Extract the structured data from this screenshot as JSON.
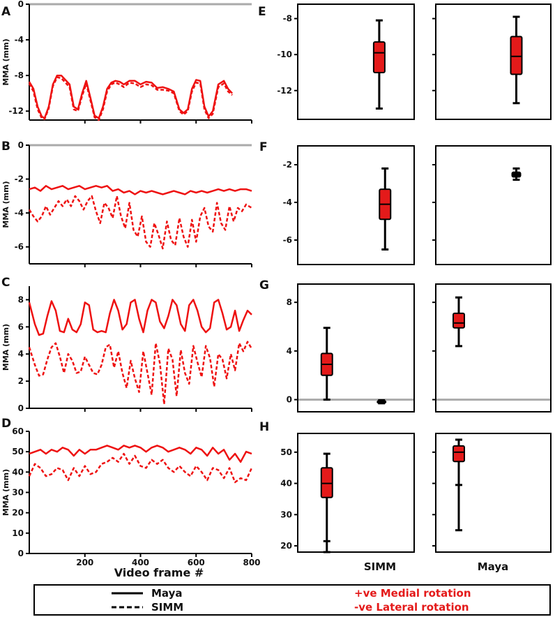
{
  "figure": {
    "colors": {
      "series": "#ee1111",
      "axis": "#000000",
      "zero_line": "#aaaaaa",
      "box_fill": "#e41a1a"
    },
    "legend": {
      "maya_label": "Maya",
      "simm_label": "SIMM",
      "medial_text": "+ve Medial rotation",
      "lateral_text": "-ve Lateral rotation"
    }
  },
  "chart_data": [
    {
      "panel": "A",
      "type": "line",
      "ylabel": "MMA (mm)",
      "ylim": [
        -13,
        0
      ],
      "yticks": [
        0,
        -4,
        -8,
        -12
      ],
      "xlim": [
        0,
        800
      ],
      "zero_line": true,
      "series": [
        {
          "name": "Maya",
          "style": "solid",
          "x": [
            0,
            15,
            30,
            45,
            55,
            70,
            85,
            100,
            115,
            130,
            145,
            160,
            175,
            190,
            205,
            220,
            235,
            250,
            265,
            280,
            295,
            310,
            325,
            340,
            360,
            380,
            400,
            420,
            440,
            460,
            480,
            500,
            520,
            540,
            555,
            570,
            585,
            600,
            615,
            630,
            645,
            660,
            680,
            700,
            715,
            730
          ],
          "y": [
            -8.7,
            -9.5,
            -11.5,
            -12.6,
            -12.8,
            -11.5,
            -9,
            -8,
            -8,
            -8.5,
            -9,
            -11.5,
            -11.8,
            -10,
            -8.6,
            -10.5,
            -12.5,
            -12.8,
            -11.5,
            -9.5,
            -8.8,
            -8.6,
            -8.7,
            -9,
            -8.6,
            -8.6,
            -9,
            -8.7,
            -8.8,
            -9.4,
            -9.3,
            -9.5,
            -9.8,
            -11.8,
            -12.2,
            -11.8,
            -9.5,
            -8.5,
            -8.6,
            -11.5,
            -12.6,
            -12,
            -9,
            -8.6,
            -9.5,
            -10
          ]
        },
        {
          "name": "SIMM",
          "style": "dashed",
          "x": [
            0,
            15,
            30,
            45,
            55,
            70,
            85,
            100,
            115,
            130,
            145,
            160,
            175,
            190,
            205,
            220,
            235,
            250,
            265,
            280,
            295,
            310,
            325,
            340,
            360,
            380,
            400,
            420,
            440,
            460,
            480,
            500,
            520,
            540,
            555,
            570,
            585,
            600,
            615,
            630,
            645,
            660,
            680,
            700,
            715,
            730
          ],
          "y": [
            -8.9,
            -9.8,
            -11.8,
            -12.8,
            -12.9,
            -11.7,
            -9.2,
            -8.2,
            -8.3,
            -8.8,
            -9.3,
            -11.8,
            -12,
            -10.3,
            -8.9,
            -10.8,
            -12.7,
            -13,
            -11.8,
            -9.8,
            -9,
            -8.8,
            -9,
            -9.3,
            -8.8,
            -8.9,
            -9.3,
            -9,
            -9.1,
            -9.6,
            -9.6,
            -9.7,
            -10,
            -12,
            -12.4,
            -12,
            -9.8,
            -8.8,
            -8.9,
            -11.8,
            -12.8,
            -12.3,
            -9.3,
            -8.9,
            -9.8,
            -10.2
          ]
        }
      ]
    },
    {
      "panel": "B",
      "type": "line",
      "ylabel": "MMA (mm)",
      "ylim": [
        -7,
        0
      ],
      "yticks": [
        0,
        -2,
        -4,
        -6
      ],
      "xlim": [
        0,
        800
      ],
      "zero_line": true,
      "series": [
        {
          "name": "Maya",
          "style": "solid",
          "x": [
            0,
            20,
            40,
            60,
            80,
            100,
            120,
            140,
            160,
            180,
            200,
            220,
            240,
            260,
            280,
            300,
            320,
            340,
            360,
            380,
            400,
            420,
            440,
            460,
            480,
            500,
            520,
            540,
            560,
            580,
            600,
            620,
            640,
            660,
            680,
            700,
            720,
            740,
            760,
            780,
            800
          ],
          "y": [
            -2.6,
            -2.5,
            -2.7,
            -2.4,
            -2.6,
            -2.5,
            -2.4,
            -2.6,
            -2.5,
            -2.4,
            -2.6,
            -2.5,
            -2.4,
            -2.5,
            -2.4,
            -2.7,
            -2.6,
            -2.8,
            -2.7,
            -2.9,
            -2.7,
            -2.8,
            -2.7,
            -2.8,
            -2.9,
            -2.8,
            -2.7,
            -2.8,
            -2.9,
            -2.7,
            -2.8,
            -2.7,
            -2.8,
            -2.7,
            -2.6,
            -2.7,
            -2.6,
            -2.7,
            -2.6,
            -2.6,
            -2.7
          ]
        },
        {
          "name": "SIMM",
          "style": "dashed",
          "x": [
            0,
            15,
            30,
            45,
            60,
            75,
            90,
            105,
            120,
            135,
            150,
            165,
            180,
            195,
            210,
            225,
            240,
            255,
            270,
            285,
            300,
            315,
            330,
            345,
            360,
            375,
            390,
            405,
            420,
            435,
            450,
            465,
            480,
            495,
            510,
            525,
            540,
            555,
            570,
            585,
            600,
            615,
            630,
            645,
            660,
            675,
            690,
            705,
            720,
            735,
            750,
            765,
            780,
            800
          ],
          "y": [
            -3.8,
            -4.2,
            -4.5,
            -4.2,
            -3.6,
            -4.1,
            -3.7,
            -3.3,
            -3.6,
            -3.2,
            -3.6,
            -3.0,
            -3.3,
            -3.8,
            -3.3,
            -3.0,
            -3.9,
            -4.6,
            -3.4,
            -3.7,
            -4.3,
            -3.0,
            -4.2,
            -4.9,
            -3.4,
            -5.0,
            -5.4,
            -4.2,
            -5.7,
            -6.0,
            -4.6,
            -5.3,
            -6.1,
            -4.5,
            -5.6,
            -5.9,
            -4.3,
            -5.4,
            -6.0,
            -4.4,
            -5.7,
            -4.2,
            -3.7,
            -4.8,
            -5.1,
            -3.4,
            -4.6,
            -5.0,
            -3.6,
            -4.5,
            -3.7,
            -3.9,
            -3.5,
            -3.7
          ]
        }
      ]
    },
    {
      "panel": "C",
      "type": "line",
      "ylabel": "MMA (mm)",
      "ylim": [
        0,
        9
      ],
      "yticks": [
        0,
        2,
        4,
        6,
        8
      ],
      "xlim": [
        0,
        800
      ],
      "zero_line": false,
      "series": [
        {
          "name": "Maya",
          "style": "solid",
          "x": [
            0,
            20,
            35,
            50,
            65,
            80,
            95,
            110,
            125,
            140,
            155,
            170,
            185,
            200,
            215,
            230,
            245,
            260,
            275,
            290,
            305,
            320,
            335,
            350,
            365,
            380,
            395,
            410,
            425,
            440,
            455,
            470,
            485,
            500,
            515,
            530,
            545,
            560,
            575,
            590,
            605,
            620,
            635,
            650,
            665,
            680,
            695,
            710,
            725,
            740,
            755,
            770,
            785,
            800
          ],
          "y": [
            7.8,
            6.2,
            5.4,
            5.5,
            6.8,
            7.9,
            7.2,
            5.7,
            5.6,
            6.6,
            5.8,
            5.6,
            6.2,
            7.8,
            7.6,
            5.8,
            5.6,
            5.7,
            5.6,
            7.0,
            8.0,
            7.2,
            5.8,
            6.2,
            7.8,
            8.0,
            6.6,
            5.6,
            7.2,
            8.0,
            7.8,
            6.4,
            5.9,
            6.8,
            8.0,
            7.6,
            6.2,
            5.7,
            7.6,
            8.0,
            7.2,
            6.0,
            5.6,
            5.9,
            7.8,
            8.0,
            7.0,
            5.8,
            6.0,
            7.2,
            5.7,
            6.5,
            7.2,
            6.9
          ]
        },
        {
          "name": "SIMM",
          "style": "dashed",
          "x": [
            0,
            20,
            35,
            50,
            65,
            80,
            95,
            110,
            125,
            140,
            155,
            170,
            185,
            200,
            215,
            230,
            245,
            260,
            275,
            290,
            305,
            320,
            335,
            350,
            365,
            380,
            395,
            410,
            425,
            440,
            455,
            470,
            485,
            500,
            515,
            530,
            545,
            560,
            575,
            590,
            605,
            620,
            635,
            650,
            665,
            680,
            695,
            710,
            725,
            740,
            755,
            770,
            785,
            800
          ],
          "y": [
            4.5,
            3.2,
            2.4,
            2.5,
            3.6,
            4.5,
            4.8,
            3.8,
            2.6,
            4.0,
            3.5,
            2.6,
            2.7,
            3.8,
            3.2,
            2.6,
            2.5,
            3.2,
            4.5,
            4.7,
            3.0,
            4.2,
            2.6,
            1.5,
            3.5,
            2.2,
            1.2,
            4.2,
            2.6,
            1.0,
            4.8,
            3.3,
            0.3,
            4.4,
            3.6,
            0.9,
            4.3,
            2.6,
            1.8,
            4.6,
            3.4,
            2.3,
            4.6,
            3.7,
            1.6,
            4.0,
            3.6,
            2.2,
            4.0,
            2.8,
            4.8,
            4.2,
            4.9,
            4.4
          ]
        }
      ]
    },
    {
      "panel": "D",
      "type": "line",
      "ylabel": "MMA (mm)",
      "xlabel": "Video frame #",
      "ylim": [
        0,
        60
      ],
      "yticks": [
        0,
        10,
        20,
        30,
        40,
        50,
        60
      ],
      "xticks": [
        200,
        400,
        600,
        800
      ],
      "xlim": [
        0,
        800
      ],
      "zero_line": false,
      "series": [
        {
          "name": "Maya",
          "style": "solid",
          "x": [
            0,
            20,
            40,
            60,
            80,
            100,
            120,
            140,
            160,
            180,
            200,
            220,
            240,
            260,
            280,
            300,
            320,
            340,
            360,
            380,
            400,
            420,
            440,
            460,
            480,
            500,
            520,
            540,
            560,
            580,
            600,
            620,
            640,
            660,
            680,
            700,
            720,
            740,
            760,
            780,
            800
          ],
          "y": [
            49,
            50,
            51,
            49,
            51,
            50,
            52,
            51,
            48,
            51,
            49,
            51,
            51,
            52,
            53,
            52,
            51,
            53,
            52,
            53,
            52,
            50,
            52,
            53,
            52,
            50,
            51,
            52,
            51,
            49,
            52,
            51,
            48,
            52,
            49,
            51,
            46,
            49,
            45,
            50,
            49
          ]
        },
        {
          "name": "SIMM",
          "style": "dashed",
          "x": [
            0,
            20,
            40,
            60,
            80,
            100,
            120,
            140,
            160,
            180,
            200,
            220,
            240,
            260,
            280,
            300,
            320,
            340,
            360,
            380,
            400,
            420,
            440,
            460,
            480,
            500,
            520,
            540,
            560,
            580,
            600,
            620,
            640,
            660,
            680,
            700,
            720,
            740,
            760,
            780,
            800
          ],
          "y": [
            38,
            44,
            42,
            38,
            39,
            42,
            41,
            36,
            42,
            38,
            43,
            39,
            40,
            44,
            45,
            47,
            45,
            49,
            44,
            48,
            43,
            42,
            46,
            44,
            46,
            42,
            40,
            43,
            40,
            38,
            43,
            40,
            36,
            42,
            41,
            37,
            42,
            35,
            37,
            36,
            42
          ]
        }
      ]
    },
    {
      "panel": "E",
      "type": "box",
      "ylim": [
        -13.6,
        -7.2
      ],
      "yticks": [
        -8,
        -10,
        -12
      ],
      "subplots": [
        {
          "name": "SIMM",
          "boxes": [
            {
              "pos": 0.7,
              "min": -13,
              "q1": -11,
              "median": -9.9,
              "q3": -9.3,
              "max": -8.1,
              "color": "red"
            }
          ]
        },
        {
          "name": "Maya",
          "boxes": [
            {
              "pos": 0.7,
              "min": -12.7,
              "q1": -11.1,
              "median": -10.1,
              "q3": -9.0,
              "max": -7.9,
              "color": "red"
            }
          ]
        }
      ]
    },
    {
      "panel": "F",
      "type": "box",
      "ylim": [
        -7.3,
        -1.0
      ],
      "yticks": [
        -2,
        -4,
        -6
      ],
      "subplots": [
        {
          "name": "SIMM",
          "boxes": [
            {
              "pos": 0.75,
              "min": -6.5,
              "q1": -4.9,
              "median": -4.1,
              "q3": -3.3,
              "max": -2.2,
              "color": "red"
            }
          ]
        },
        {
          "name": "Maya",
          "boxes": [
            {
              "pos": 0.7,
              "min": -2.8,
              "q1": -2.65,
              "median": -2.5,
              "q3": -2.4,
              "max": -2.2,
              "color": "black"
            }
          ]
        }
      ]
    },
    {
      "panel": "G",
      "type": "box",
      "ylim": [
        -1.0,
        9.5
      ],
      "yticks": [
        0,
        4,
        8
      ],
      "zero_line": true,
      "subplots": [
        {
          "name": "SIMM",
          "boxes": [
            {
              "pos": 0.25,
              "min": 0,
              "q1": 2.0,
              "median": 2.9,
              "q3": 3.8,
              "max": 5.9,
              "color": "red"
            },
            {
              "pos": 0.72,
              "min": -0.3,
              "q1": -0.25,
              "median": -0.2,
              "q3": -0.1,
              "max": -0.05,
              "color": "black"
            }
          ]
        },
        {
          "name": "Maya",
          "boxes": [
            {
              "pos": 0.2,
              "min": 4.4,
              "q1": 5.9,
              "median": 6.3,
              "q3": 7.1,
              "max": 8.4,
              "color": "red"
            }
          ]
        }
      ]
    },
    {
      "panel": "H",
      "type": "box",
      "ylim": [
        18,
        56
      ],
      "yticks": [
        20,
        30,
        40,
        50
      ],
      "xlabels": [
        "SIMM",
        "Maya"
      ],
      "subplots": [
        {
          "name": "SIMM",
          "boxes": [
            {
              "pos": 0.25,
              "min": 18,
              "q1": 35.5,
              "median": 40,
              "q3": 45,
              "max": 49.5,
              "whisker_tick": 21.5,
              "color": "red"
            }
          ]
        },
        {
          "name": "Maya",
          "boxes": [
            {
              "pos": 0.2,
              "min": 25,
              "q1": 47,
              "median": 50,
              "q3": 52,
              "max": 54,
              "whisker_tick": 39.5,
              "color": "red"
            }
          ]
        }
      ]
    }
  ]
}
